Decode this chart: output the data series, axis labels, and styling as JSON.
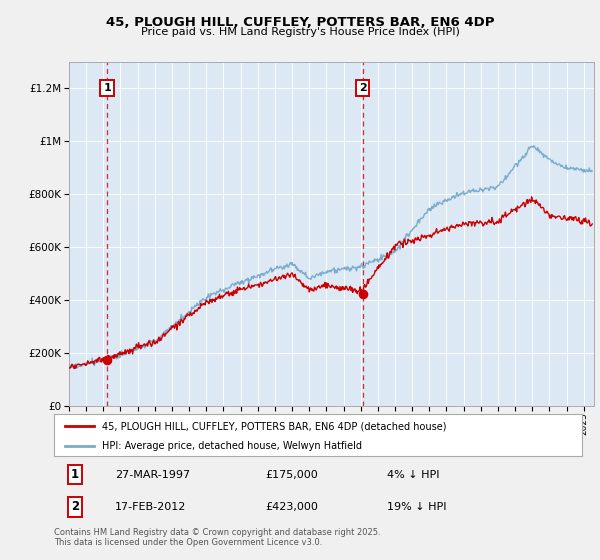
{
  "title1": "45, PLOUGH HILL, CUFFLEY, POTTERS BAR, EN6 4DP",
  "title2": "Price paid vs. HM Land Registry's House Price Index (HPI)",
  "legend_label1": "45, PLOUGH HILL, CUFFLEY, POTTERS BAR, EN6 4DP (detached house)",
  "legend_label2": "HPI: Average price, detached house, Welwyn Hatfield",
  "sale1_date": "27-MAR-1997",
  "sale1_price": 175000,
  "sale1_label": "1",
  "sale1_pct": "4% ↓ HPI",
  "sale2_date": "17-FEB-2012",
  "sale2_price": 423000,
  "sale2_label": "2",
  "sale2_pct": "19% ↓ HPI",
  "footer": "Contains HM Land Registry data © Crown copyright and database right 2025.\nThis data is licensed under the Open Government Licence v3.0.",
  "color_red": "#cc0000",
  "color_blue": "#7aaccc",
  "color_fig_bg": "#f0f0f0",
  "color_plot_bg": "#dce8f4",
  "color_legend_bg": "white",
  "ylim": [
    0,
    1300000
  ],
  "sale1_year": 1997.22,
  "sale2_year": 2012.12
}
